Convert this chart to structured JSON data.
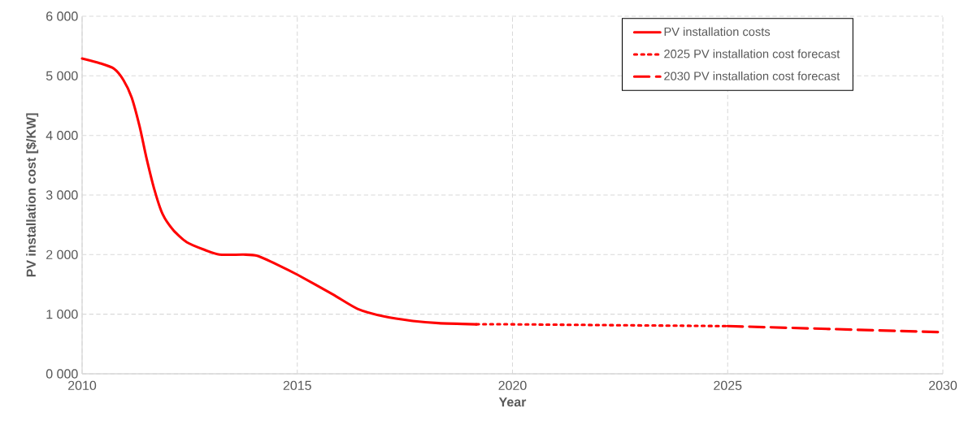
{
  "chart_data": {
    "type": "line",
    "xlabel": "Year",
    "ylabel": "PV installation cost [$/KW]",
    "xlim": [
      2010,
      2030
    ],
    "xticks": [
      2010,
      2015,
      2020,
      2025,
      2030
    ],
    "ylim": [
      0,
      6000
    ],
    "yticks": [
      {
        "value": 0,
        "label": "0 000"
      },
      {
        "value": 1000,
        "label": "1 000"
      },
      {
        "value": 2000,
        "label": "2 000"
      },
      {
        "value": 3000,
        "label": "3 000"
      },
      {
        "value": 4000,
        "label": "4 000"
      },
      {
        "value": 5000,
        "label": "5 000"
      },
      {
        "value": 6000,
        "label": "6 000"
      }
    ],
    "grid": true,
    "legend": "top right",
    "marker": "none",
    "series": [
      {
        "name": "PV installation costs",
        "color": "#ff0000",
        "line_style": "solid",
        "x": [
          2010,
          2010.42,
          2010.74,
          2010.96,
          2011.15,
          2011.34,
          2011.49,
          2011.68,
          2011.87,
          2012.12,
          2012.43,
          2012.81,
          2013.19,
          2013.75,
          2014.07,
          2014.57,
          2015.01,
          2015.83,
          2016.4,
          2017.03,
          2017.65,
          2018.28,
          2019.16
        ],
        "values": [
          5290,
          5210,
          5120,
          4930,
          4640,
          4140,
          3640,
          3090,
          2680,
          2410,
          2210,
          2090,
          2000,
          2000,
          1980,
          1820,
          1660,
          1330,
          1090,
          960,
          890,
          850,
          830
        ]
      },
      {
        "name": "2025 PV installation cost forecast",
        "color": "#ff0000",
        "line_style": "dotted",
        "x": [
          2019.16,
          2020,
          2025
        ],
        "values": [
          830,
          830,
          800
        ]
      },
      {
        "name": "2030 PV installation cost forecast",
        "color": "#ff0000",
        "line_style": "dashed",
        "x": [
          2025,
          2029.9
        ],
        "values": [
          800,
          700
        ]
      }
    ]
  }
}
